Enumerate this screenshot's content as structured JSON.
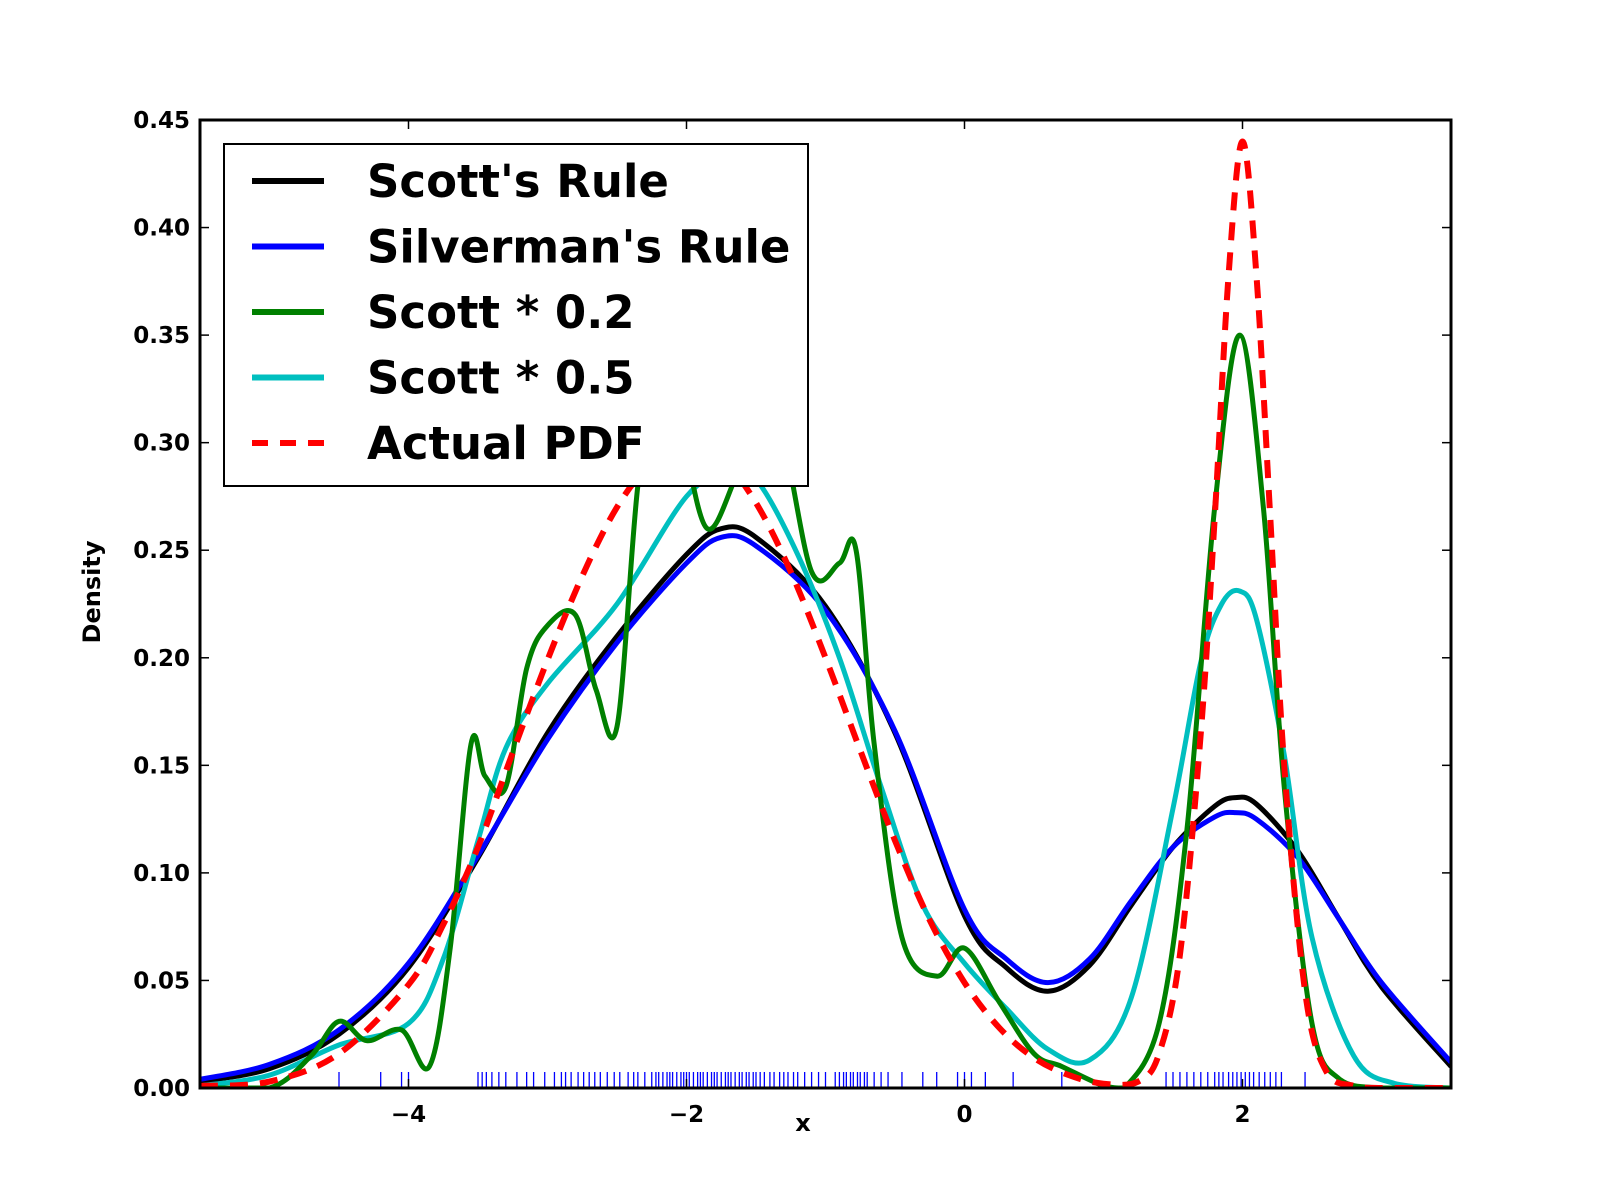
{
  "chart_data": {
    "type": "line",
    "title": "",
    "xlabel": "x",
    "ylabel": "Density",
    "xlim": [
      -5.5,
      3.5
    ],
    "ylim": [
      0.0,
      0.45
    ],
    "grid": false,
    "legend_position": "top-left",
    "x_ticks": [
      {
        "value": -4,
        "label": "−4"
      },
      {
        "value": -2,
        "label": "−2"
      },
      {
        "value": 0,
        "label": "0"
      },
      {
        "value": 2,
        "label": "2"
      }
    ],
    "y_ticks": [
      {
        "value": 0.0,
        "label": "0.00"
      },
      {
        "value": 0.05,
        "label": "0.05"
      },
      {
        "value": 0.1,
        "label": "0.10"
      },
      {
        "value": 0.15,
        "label": "0.15"
      },
      {
        "value": 0.2,
        "label": "0.20"
      },
      {
        "value": 0.25,
        "label": "0.25"
      },
      {
        "value": 0.3,
        "label": "0.30"
      },
      {
        "value": 0.35,
        "label": "0.35"
      },
      {
        "value": 0.4,
        "label": "0.40"
      },
      {
        "value": 0.45,
        "label": "0.45"
      }
    ],
    "series": [
      {
        "name": "Scott's Rule",
        "color": "#000000",
        "dash": false,
        "x": [
          -5.5,
          -5.0,
          -4.5,
          -4.0,
          -3.5,
          -3.0,
          -2.5,
          -2.0,
          -1.75,
          -1.5,
          -1.0,
          -0.5,
          0.0,
          0.3,
          0.6,
          0.9,
          1.2,
          1.5,
          1.8,
          1.95,
          2.1,
          2.4,
          2.7,
          3.0,
          3.5
        ],
        "y": [
          0.003,
          0.009,
          0.025,
          0.056,
          0.107,
          0.165,
          0.21,
          0.248,
          0.26,
          0.256,
          0.224,
          0.165,
          0.08,
          0.056,
          0.045,
          0.057,
          0.085,
          0.112,
          0.131,
          0.135,
          0.132,
          0.11,
          0.078,
          0.047,
          0.01
        ]
      },
      {
        "name": "Silverman's Rule",
        "color": "#0000ff",
        "dash": false,
        "x": [
          -5.5,
          -5.0,
          -4.5,
          -4.0,
          -3.5,
          -3.0,
          -2.5,
          -2.0,
          -1.75,
          -1.5,
          -1.0,
          -0.5,
          0.0,
          0.3,
          0.6,
          0.9,
          1.2,
          1.5,
          1.8,
          1.95,
          2.1,
          2.4,
          2.7,
          3.0,
          3.5
        ],
        "y": [
          0.004,
          0.011,
          0.027,
          0.058,
          0.108,
          0.162,
          0.207,
          0.244,
          0.256,
          0.252,
          0.222,
          0.166,
          0.083,
          0.06,
          0.049,
          0.06,
          0.087,
          0.112,
          0.126,
          0.128,
          0.125,
          0.107,
          0.078,
          0.049,
          0.012
        ]
      },
      {
        "name": "Scott * 0.2",
        "color": "#008000",
        "dash": false,
        "x": [
          -5.5,
          -5.0,
          -4.7,
          -4.5,
          -4.3,
          -4.05,
          -3.85,
          -3.7,
          -3.55,
          -3.45,
          -3.3,
          -3.15,
          -3.0,
          -2.8,
          -2.65,
          -2.5,
          -2.35,
          -2.2,
          -2.05,
          -1.85,
          -1.6,
          -1.35,
          -1.1,
          -0.9,
          -0.78,
          -0.65,
          -0.45,
          -0.2,
          0.0,
          0.25,
          0.5,
          0.7,
          1.0,
          1.15,
          1.4,
          1.6,
          1.8,
          1.98,
          2.15,
          2.3,
          2.5,
          2.7,
          3.0,
          3.5
        ],
        "y": [
          0.0,
          0.0,
          0.015,
          0.031,
          0.022,
          0.027,
          0.01,
          0.065,
          0.16,
          0.145,
          0.14,
          0.195,
          0.215,
          0.22,
          0.185,
          0.168,
          0.28,
          0.335,
          0.31,
          0.26,
          0.29,
          0.31,
          0.24,
          0.244,
          0.25,
          0.16,
          0.07,
          0.052,
          0.065,
          0.04,
          0.016,
          0.01,
          0.001,
          0.0,
          0.03,
          0.12,
          0.27,
          0.35,
          0.27,
          0.14,
          0.03,
          0.004,
          0.0,
          0.0
        ]
      },
      {
        "name": "Scott * 0.5",
        "color": "#00bfbf",
        "dash": false,
        "x": [
          -5.5,
          -5.0,
          -4.5,
          -4.0,
          -3.75,
          -3.5,
          -3.3,
          -3.0,
          -2.5,
          -2.0,
          -1.7,
          -1.5,
          -1.2,
          -0.9,
          -0.6,
          -0.3,
          0.0,
          0.3,
          0.6,
          0.9,
          1.2,
          1.5,
          1.7,
          1.85,
          1.98,
          2.1,
          2.3,
          2.5,
          2.8,
          3.1,
          3.5
        ],
        "y": [
          0.001,
          0.006,
          0.02,
          0.03,
          0.06,
          0.115,
          0.158,
          0.188,
          0.225,
          0.275,
          0.286,
          0.283,
          0.248,
          0.2,
          0.14,
          0.085,
          0.058,
          0.037,
          0.018,
          0.013,
          0.042,
          0.13,
          0.198,
          0.225,
          0.231,
          0.218,
          0.155,
          0.07,
          0.015,
          0.002,
          0.0
        ]
      },
      {
        "name": "Actual PDF",
        "color": "#ff0000",
        "dash": true,
        "x": [
          -5.5,
          -5.0,
          -4.5,
          -4.0,
          -3.75,
          -3.5,
          -3.25,
          -3.0,
          -2.75,
          -2.5,
          -2.25,
          -2.0,
          -1.75,
          -1.5,
          -1.25,
          -1.0,
          -0.75,
          -0.5,
          -0.25,
          0.0,
          0.25,
          0.5,
          0.75,
          1.0,
          1.25,
          1.4,
          1.55,
          1.7,
          1.8,
          1.9,
          2.0,
          2.1,
          2.2,
          2.3,
          2.45,
          2.6,
          2.8,
          3.0,
          3.5
        ],
        "y": [
          0.001,
          0.003,
          0.016,
          0.048,
          0.076,
          0.112,
          0.156,
          0.199,
          0.238,
          0.27,
          0.291,
          0.3,
          0.293,
          0.272,
          0.24,
          0.2,
          0.157,
          0.115,
          0.078,
          0.049,
          0.028,
          0.014,
          0.006,
          0.002,
          0.003,
          0.016,
          0.062,
          0.165,
          0.265,
          0.378,
          0.44,
          0.378,
          0.265,
          0.15,
          0.045,
          0.008,
          0.001,
          0.0,
          0.0
        ]
      }
    ],
    "rug_ticks_x": [
      -4.5,
      -4.2,
      -4.05,
      -4.0,
      -3.5,
      -3.47,
      -3.44,
      -3.4,
      -3.35,
      -3.3,
      -3.22,
      -3.15,
      -3.1,
      -3.02,
      -2.95,
      -2.9,
      -2.87,
      -2.83,
      -2.78,
      -2.74,
      -2.7,
      -2.66,
      -2.62,
      -2.57,
      -2.52,
      -2.48,
      -2.42,
      -2.38,
      -2.35,
      -2.3,
      -2.25,
      -2.22,
      -2.2,
      -2.17,
      -2.14,
      -2.12,
      -2.1,
      -2.07,
      -2.04,
      -2.02,
      -2.0,
      -1.98,
      -1.95,
      -1.92,
      -1.9,
      -1.88,
      -1.85,
      -1.82,
      -1.8,
      -1.78,
      -1.75,
      -1.72,
      -1.7,
      -1.68,
      -1.65,
      -1.62,
      -1.6,
      -1.57,
      -1.55,
      -1.52,
      -1.5,
      -1.47,
      -1.44,
      -1.4,
      -1.37,
      -1.33,
      -1.3,
      -1.27,
      -1.23,
      -1.2,
      -1.15,
      -1.1,
      -1.05,
      -1.0,
      -0.93,
      -0.9,
      -0.87,
      -0.85,
      -0.82,
      -0.8,
      -0.77,
      -0.75,
      -0.72,
      -0.7,
      -0.65,
      -0.6,
      -0.55,
      -0.45,
      -0.3,
      -0.2,
      -0.05,
      0.0,
      0.05,
      0.15,
      0.35,
      0.7,
      1.45,
      1.5,
      1.55,
      1.6,
      1.65,
      1.7,
      1.75,
      1.8,
      1.83,
      1.86,
      1.9,
      1.93,
      1.96,
      1.99,
      2.02,
      2.05,
      2.08,
      2.12,
      2.16,
      2.2,
      2.24,
      2.28,
      2.45
    ]
  }
}
